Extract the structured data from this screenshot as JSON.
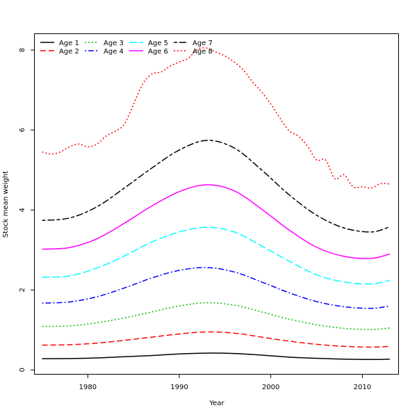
{
  "chart_data": {
    "type": "line",
    "title": "",
    "xlabel": "Year",
    "ylabel": "Stock mean weight",
    "xlim": [
      1974.2,
      2014.0
    ],
    "ylim": [
      -0.1,
      8.4
    ],
    "xticks": [
      1980,
      1990,
      2000,
      2010
    ],
    "yticks": [
      0,
      2,
      4,
      6,
      8
    ],
    "legend_position": "top-left",
    "series": [
      {
        "name": "Age 1",
        "color": "#000000",
        "dash": "solid",
        "x": [
          1975,
          1978,
          1981,
          1984,
          1987,
          1990,
          1993,
          1996,
          1999,
          2002,
          2005,
          2008,
          2011,
          2013
        ],
        "values": [
          0.28,
          0.285,
          0.3,
          0.33,
          0.36,
          0.4,
          0.42,
          0.41,
          0.37,
          0.32,
          0.29,
          0.27,
          0.26,
          0.27
        ]
      },
      {
        "name": "Age 2",
        "color": "#ff0000",
        "dash": "dashed",
        "x": [
          1975,
          1978,
          1981,
          1984,
          1987,
          1990,
          1993,
          1996,
          1999,
          2002,
          2005,
          2008,
          2011,
          2013
        ],
        "values": [
          0.62,
          0.63,
          0.67,
          0.74,
          0.82,
          0.9,
          0.95,
          0.92,
          0.82,
          0.72,
          0.64,
          0.59,
          0.57,
          0.59
        ]
      },
      {
        "name": "Age 3",
        "color": "#00bb00",
        "dash": "dotted",
        "x": [
          1975,
          1978,
          1981,
          1984,
          1987,
          1990,
          1993,
          1996,
          1999,
          2002,
          2005,
          2008,
          2011,
          2013
        ],
        "values": [
          1.09,
          1.1,
          1.18,
          1.3,
          1.45,
          1.6,
          1.68,
          1.62,
          1.45,
          1.27,
          1.13,
          1.04,
          1.01,
          1.05
        ]
      },
      {
        "name": "Age 4",
        "color": "#0000ff",
        "dash": "dotdash",
        "x": [
          1975,
          1978,
          1981,
          1984,
          1987,
          1990,
          1993,
          1996,
          1999,
          2002,
          2005,
          2008,
          2011,
          2013
        ],
        "values": [
          1.67,
          1.7,
          1.83,
          2.05,
          2.3,
          2.49,
          2.56,
          2.45,
          2.2,
          1.93,
          1.71,
          1.58,
          1.54,
          1.6
        ]
      },
      {
        "name": "Age 5",
        "color": "#00ffff",
        "dash": "longdash",
        "x": [
          1975,
          1978,
          1981,
          1984,
          1987,
          1990,
          1993,
          1996,
          1999,
          2002,
          2005,
          2008,
          2011,
          2013
        ],
        "values": [
          2.32,
          2.35,
          2.55,
          2.85,
          3.2,
          3.45,
          3.57,
          3.45,
          3.1,
          2.72,
          2.38,
          2.2,
          2.15,
          2.24
        ]
      },
      {
        "name": "Age 6",
        "color": "#ff00ff",
        "dash": "solid",
        "x": [
          1975,
          1978,
          1981,
          1984,
          1987,
          1990,
          1993,
          1996,
          1999,
          2002,
          2005,
          2008,
          2011,
          2013
        ],
        "values": [
          3.02,
          3.06,
          3.28,
          3.67,
          4.1,
          4.46,
          4.63,
          4.48,
          4.02,
          3.5,
          3.07,
          2.84,
          2.79,
          2.9
        ]
      },
      {
        "name": "Age 7",
        "color": "#000000",
        "dash": "twodash",
        "x": [
          1975,
          1978,
          1981,
          1984,
          1987,
          1990,
          1993,
          1996,
          1999,
          2002,
          2005,
          2008,
          2011,
          2013
        ],
        "values": [
          3.74,
          3.8,
          4.08,
          4.55,
          5.05,
          5.5,
          5.74,
          5.55,
          5.0,
          4.38,
          3.87,
          3.55,
          3.45,
          3.58
        ]
      },
      {
        "name": "Age 8",
        "color": "#ff0000",
        "dash": "dotted",
        "x": [
          1975,
          1976,
          1977,
          1978,
          1979,
          1980,
          1981,
          1982,
          1983,
          1984,
          1985,
          1986,
          1987,
          1988,
          1989,
          1990,
          1991,
          1992,
          1993,
          1994,
          1995,
          1996,
          1997,
          1998,
          1999,
          2000,
          2001,
          2002,
          2003,
          2004,
          2005,
          2006,
          2007,
          2008,
          2009,
          2010,
          2011,
          2012,
          2013
        ],
        "values": [
          5.45,
          5.4,
          5.45,
          5.58,
          5.65,
          5.58,
          5.65,
          5.85,
          5.97,
          6.15,
          6.65,
          7.15,
          7.4,
          7.45,
          7.6,
          7.7,
          7.8,
          8.02,
          8.05,
          7.95,
          7.85,
          7.7,
          7.5,
          7.2,
          6.95,
          6.65,
          6.3,
          5.98,
          5.85,
          5.6,
          5.25,
          5.25,
          4.78,
          4.88,
          4.58,
          4.58,
          4.55,
          4.66,
          4.65
        ]
      }
    ]
  }
}
